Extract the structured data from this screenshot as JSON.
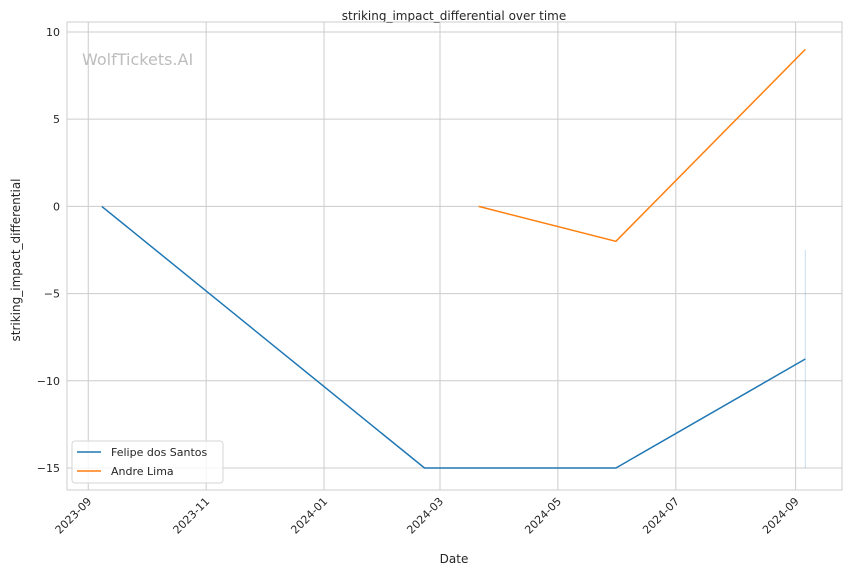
{
  "chart_data": {
    "type": "line",
    "title": "striking_impact_differential over time",
    "xlabel": "Date",
    "ylabel": "striking_impact_differential",
    "watermark": "WolfTickets.AI",
    "xlim": [
      "2023-08-21",
      "2024-09-25"
    ],
    "ylim": [
      -16.26,
      10.57
    ],
    "x_ticks": [
      "2023-09",
      "2023-11",
      "2024-01",
      "2024-03",
      "2024-05",
      "2024-07",
      "2024-09"
    ],
    "y_ticks": [
      10,
      5,
      0,
      -5,
      -10,
      -15
    ],
    "y_tick_labels": [
      "10",
      "5",
      "0",
      "−5",
      "−10",
      "−15"
    ],
    "grid": true,
    "legend_position": "lower-left",
    "series": [
      {
        "name": "Felipe dos Santos",
        "color": "#1f77b4",
        "x": [
          "2023-09-08",
          "2024-02-22",
          "2024-05-31",
          "2024-09-06"
        ],
        "y": [
          0,
          -15,
          -15,
          -8.75
        ],
        "interval": {
          "x": "2024-09-06",
          "low": -15,
          "high": -2.5
        }
      },
      {
        "name": "Andre Lima",
        "color": "#ff7f0e",
        "x": [
          "2024-03-21",
          "2024-05-31",
          "2024-09-06"
        ],
        "y": [
          0,
          -2,
          9
        ]
      }
    ]
  }
}
